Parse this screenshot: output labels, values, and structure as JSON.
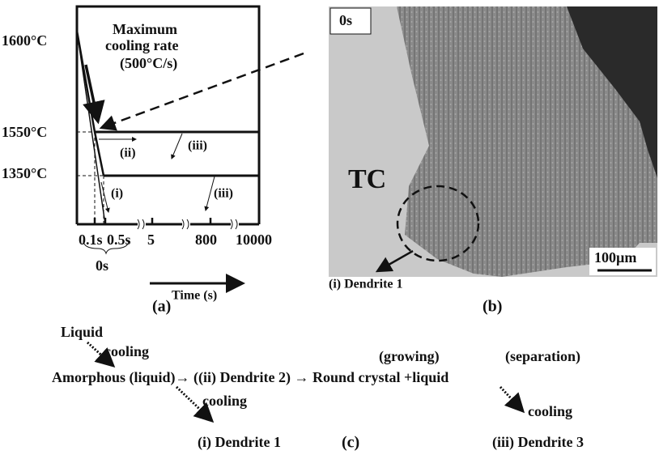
{
  "panel_a": {
    "temperatures": [
      "1600°C",
      "1550°C",
      "1350°C"
    ],
    "annotation": [
      "Maximum",
      "cooling rate",
      "(500°C/s)"
    ],
    "path_labels": [
      "(ii)",
      "(iii)",
      "(i)",
      "(iii)"
    ],
    "time_ticks": [
      "0.1s",
      "0.5s",
      "5",
      "800",
      "10000"
    ],
    "group_label": "0s",
    "axis_label": "Time (s)",
    "label": "(a)"
  },
  "panel_b": {
    "time": "0s",
    "region": "TC",
    "scale": "100µm",
    "callout": "(i) Dendrite 1",
    "label": "(b)"
  },
  "panel_c": {
    "start": "Liquid",
    "cooling_1": "cooling",
    "sequence": "Amorphous (liquid)→ ((ii) Dendrite 2) → Round crystal +liquid",
    "growing": "(growing)",
    "separation": "(separation)",
    "cooling_2": "cooling",
    "result_1": "(i) Dendrite 1",
    "label": "(c)",
    "cooling_3": "cooling",
    "result_3": "(iii) Dendrite 3"
  }
}
